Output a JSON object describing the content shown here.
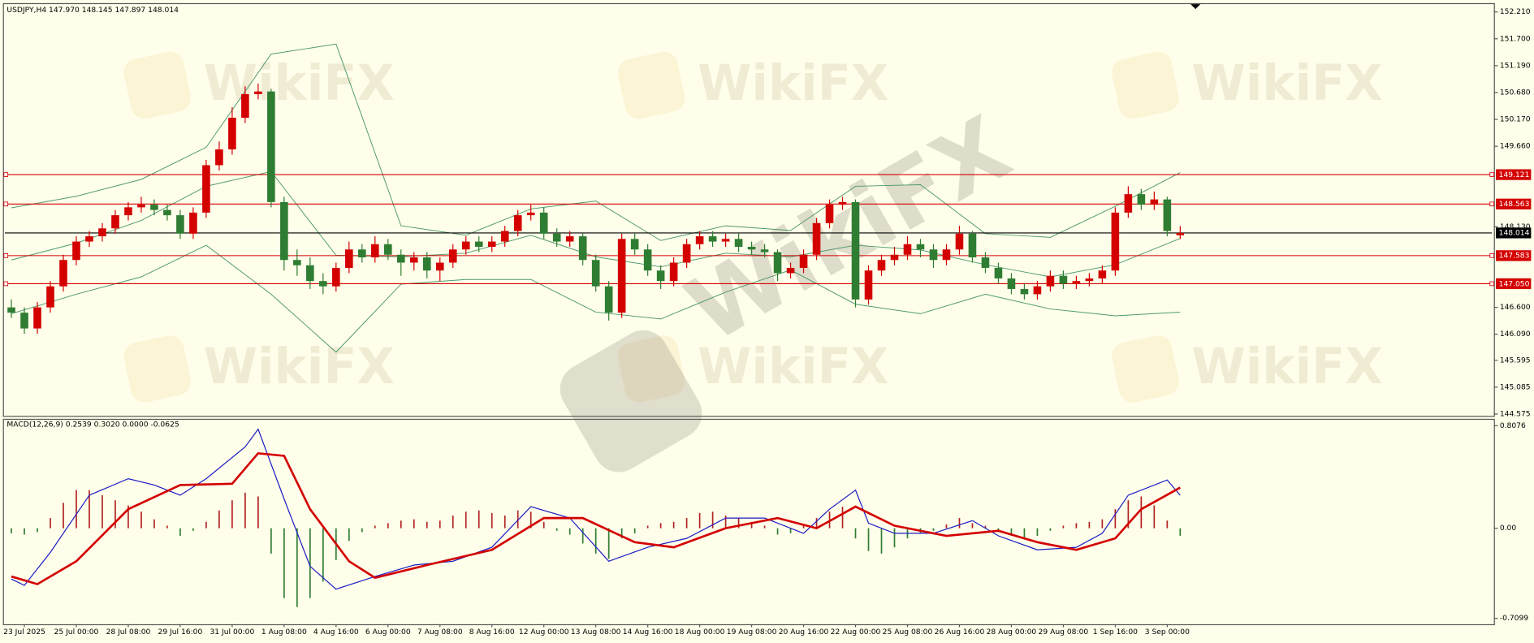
{
  "chart_data": {
    "type": "candlestick",
    "title": "USDJPY,H4  147.970 148.145 147.897 148.014",
    "watermark": "WikiFX",
    "bull_color": "#d40000",
    "bear_color": "#2f7d32",
    "categories": [
      null,
      "23 Jul 2025",
      null,
      null,
      null,
      "25 Jul 00:00",
      null,
      null,
      null,
      "28 Jul 08:00",
      null,
      null,
      null,
      "29 Jul 16:00",
      null,
      null,
      null,
      "31 Jul 00:00",
      null,
      null,
      null,
      "1 Aug 08:00",
      null,
      null,
      null,
      "4 Aug 16:00",
      null,
      null,
      null,
      "6 Aug 00:00",
      null,
      null,
      null,
      "7 Aug 08:00",
      null,
      null,
      null,
      "8 Aug 16:00",
      null,
      null,
      null,
      "12 Aug 00:00",
      null,
      null,
      null,
      "13 Aug 08:00",
      null,
      null,
      null,
      "14 Aug 16:00",
      null,
      null,
      null,
      "18 Aug 00:00",
      null,
      null,
      null,
      "19 Aug 08:00",
      null,
      null,
      null,
      "20 Aug 16:00",
      null,
      null,
      null,
      "22 Aug 00:00",
      null,
      null,
      null,
      "25 Aug 08:00",
      null,
      null,
      null,
      "26 Aug 16:00",
      null,
      null,
      null,
      "28 Aug 00:00",
      null,
      null,
      null,
      "29 Aug 08:00",
      null,
      null,
      null,
      "1 Sep 16:00",
      null,
      null,
      null,
      "3 Sep 00:00",
      null
    ],
    "open": [
      146.6,
      146.5,
      146.2,
      146.6,
      147.0,
      147.5,
      147.85,
      147.95,
      148.1,
      148.35,
      148.5,
      148.55,
      148.45,
      148.35,
      148.0,
      148.4,
      149.3,
      149.6,
      150.2,
      150.65,
      150.7,
      148.6,
      147.5,
      147.4,
      147.1,
      147.0,
      147.35,
      147.7,
      147.55,
      147.8,
      147.6,
      147.45,
      147.55,
      147.3,
      147.45,
      147.7,
      147.85,
      147.75,
      147.85,
      148.05,
      148.35,
      148.4,
      148.0,
      147.85,
      147.95,
      147.5,
      147.0,
      146.5,
      147.9,
      147.7,
      147.3,
      147.1,
      147.45,
      147.8,
      147.95,
      147.85,
      147.9,
      147.75,
      147.7,
      147.65,
      147.25,
      147.35,
      147.6,
      148.2,
      148.55,
      148.6,
      146.75,
      147.3,
      147.5,
      147.6,
      147.8,
      147.7,
      147.5,
      147.7,
      148.0,
      147.55,
      147.35,
      147.15,
      146.95,
      146.85,
      147.0,
      147.2,
      147.05,
      147.1,
      147.15,
      147.3,
      148.4,
      148.75,
      148.55,
      148.65,
      147.97
    ],
    "high": [
      146.75,
      146.6,
      146.7,
      147.1,
      147.6,
      147.95,
      148.05,
      148.2,
      148.45,
      148.6,
      148.7,
      148.65,
      148.55,
      148.45,
      148.5,
      149.4,
      149.75,
      150.4,
      150.8,
      150.85,
      150.75,
      148.7,
      147.7,
      147.55,
      147.25,
      147.45,
      147.85,
      147.8,
      147.95,
      147.9,
      147.7,
      147.65,
      147.65,
      147.55,
      147.8,
      147.95,
      147.95,
      147.95,
      148.15,
      148.45,
      148.55,
      148.5,
      148.1,
      148.05,
      148.0,
      147.6,
      147.1,
      148.0,
      148.0,
      147.8,
      147.4,
      147.55,
      147.9,
      148.05,
      148.05,
      148.0,
      148.0,
      147.85,
      147.8,
      147.7,
      147.45,
      147.7,
      148.3,
      148.65,
      148.7,
      148.65,
      147.4,
      147.6,
      147.75,
      147.95,
      147.9,
      147.8,
      147.8,
      148.15,
      148.05,
      147.65,
      147.45,
      147.25,
      147.05,
      147.1,
      147.3,
      147.3,
      147.2,
      147.25,
      147.4,
      148.5,
      148.9,
      148.85,
      148.8,
      148.7,
      148.145
    ],
    "low": [
      146.4,
      146.1,
      146.1,
      146.5,
      146.9,
      147.4,
      147.75,
      147.85,
      148.0,
      148.25,
      148.4,
      148.35,
      148.25,
      147.9,
      147.9,
      148.3,
      149.2,
      149.5,
      150.1,
      150.55,
      148.5,
      147.3,
      147.2,
      146.95,
      146.85,
      146.9,
      147.25,
      147.45,
      147.45,
      147.5,
      147.2,
      147.3,
      147.15,
      147.1,
      147.35,
      147.6,
      147.65,
      147.65,
      147.75,
      147.95,
      148.25,
      147.9,
      147.75,
      147.75,
      147.4,
      146.9,
      146.35,
      146.4,
      147.6,
      147.2,
      146.95,
      147.0,
      147.35,
      147.7,
      147.75,
      147.75,
      147.65,
      147.6,
      147.55,
      147.1,
      147.15,
      147.25,
      147.5,
      148.1,
      148.45,
      146.6,
      146.65,
      147.2,
      147.4,
      147.5,
      147.55,
      147.35,
      147.4,
      147.6,
      147.45,
      147.25,
      147.05,
      146.85,
      146.75,
      146.75,
      146.9,
      146.95,
      146.95,
      147.0,
      147.05,
      147.2,
      148.3,
      148.45,
      148.45,
      147.95,
      147.897
    ],
    "close": [
      146.5,
      146.2,
      146.6,
      147.0,
      147.5,
      147.85,
      147.95,
      148.1,
      148.35,
      148.5,
      148.55,
      148.45,
      148.35,
      148.0,
      148.4,
      149.3,
      149.6,
      150.2,
      150.65,
      150.7,
      148.6,
      147.5,
      147.4,
      147.1,
      147.0,
      147.35,
      147.7,
      147.55,
      147.8,
      147.6,
      147.45,
      147.55,
      147.3,
      147.45,
      147.7,
      147.85,
      147.75,
      147.85,
      148.05,
      148.35,
      148.4,
      148.0,
      147.85,
      147.95,
      147.5,
      147.0,
      146.5,
      147.9,
      147.7,
      147.3,
      147.1,
      147.45,
      147.8,
      147.95,
      147.85,
      147.9,
      147.75,
      147.7,
      147.65,
      147.25,
      147.35,
      147.6,
      148.2,
      148.55,
      148.6,
      146.75,
      147.3,
      147.5,
      147.6,
      147.8,
      147.7,
      147.5,
      147.7,
      148.0,
      147.55,
      147.35,
      147.15,
      146.95,
      146.85,
      147.0,
      147.2,
      147.05,
      147.1,
      147.15,
      147.3,
      148.4,
      148.75,
      148.55,
      148.65,
      148.05,
      148.014
    ],
    "ylim": [
      144.54,
      152.34
    ],
    "yticks": [
      {
        "value": 152.21,
        "label": "152.210"
      },
      {
        "value": 151.7,
        "label": "151.700"
      },
      {
        "value": 151.19,
        "label": "151.190"
      },
      {
        "value": 150.68,
        "label": "150.680"
      },
      {
        "value": 150.17,
        "label": "150.170"
      },
      {
        "value": 149.66,
        "label": "149.660"
      },
      {
        "value": 148.13,
        "label": "148.130"
      },
      {
        "value": 146.6,
        "label": "146.600"
      },
      {
        "value": 146.09,
        "label": "146.090"
      },
      {
        "value": 145.595,
        "label": "145.595"
      },
      {
        "value": 145.085,
        "label": "145.085"
      },
      {
        "value": 144.575,
        "label": "144.575"
      }
    ],
    "levels": [
      {
        "value": 149.121,
        "label": "149.121",
        "color": "#d40000"
      },
      {
        "value": 148.563,
        "label": "148.563",
        "color": "#d40000"
      },
      {
        "value": 147.583,
        "label": "147.583",
        "color": "#d40000"
      },
      {
        "value": 147.05,
        "label": "147.050",
        "color": "#d40000"
      },
      {
        "value": 148.014,
        "label": "148.014",
        "color": "#000000"
      }
    ],
    "bands": {
      "x": [
        0,
        5,
        10,
        15,
        20,
        25,
        30,
        35,
        40,
        45,
        50,
        55,
        60,
        65,
        70,
        75,
        80,
        85,
        90
      ],
      "series": [
        {
          "color": "#4f9a6e",
          "values": [
            148.49,
            148.71,
            149.03,
            149.64,
            151.41,
            151.6,
            148.15,
            147.97,
            148.47,
            148.62,
            147.87,
            148.15,
            148.06,
            148.9,
            148.93,
            148.0,
            147.93,
            148.52,
            149.16
          ]
        },
        {
          "color": "#4f9a6e",
          "values": [
            147.5,
            147.82,
            148.25,
            148.9,
            149.18,
            147.59,
            147.56,
            147.63,
            147.97,
            147.56,
            147.37,
            147.63,
            147.56,
            147.78,
            147.69,
            147.41,
            147.18,
            147.41,
            147.91
          ]
        },
        {
          "color": "#4f9a6e",
          "values": [
            146.48,
            146.85,
            147.18,
            147.78,
            146.85,
            145.75,
            147.04,
            147.13,
            147.13,
            146.51,
            146.38,
            146.89,
            147.31,
            146.66,
            146.48,
            146.85,
            146.57,
            146.44,
            146.51
          ]
        }
      ]
    },
    "macd": {
      "type": "macd",
      "title": "MACD(12,26,9) 0.2539 0.3020 0.0000 -0.0625",
      "ylim": [
        -0.748,
        0.846
      ],
      "yticks": [
        0.8076,
        {
          "value": 0,
          "label": "0.00"
        },
        -0.7099
      ],
      "up_color": "#b22222",
      "down_color": "#2f7d32",
      "histogram": [
        -0.04,
        -0.05,
        -0.03,
        0.08,
        0.2,
        0.3,
        0.3,
        0.26,
        0.22,
        0.18,
        0.13,
        0.07,
        0.02,
        -0.06,
        -0.02,
        0.05,
        0.14,
        0.22,
        0.28,
        0.25,
        -0.2,
        -0.55,
        -0.62,
        -0.55,
        -0.42,
        -0.25,
        -0.1,
        -0.03,
        0.02,
        0.04,
        0.06,
        0.07,
        0.05,
        0.06,
        0.1,
        0.13,
        0.14,
        0.12,
        0.1,
        0.14,
        0.13,
        0.05,
        -0.02,
        -0.05,
        -0.12,
        -0.2,
        -0.24,
        -0.08,
        -0.04,
        0.02,
        0.04,
        0.05,
        0.08,
        0.12,
        0.13,
        0.1,
        0.08,
        0.05,
        0.02,
        -0.05,
        -0.04,
        0.02,
        0.08,
        0.13,
        0.17,
        -0.08,
        -0.18,
        -0.2,
        -0.15,
        -0.08,
        -0.04,
        -0.02,
        0.03,
        0.08,
        0.04,
        0.02,
        -0.03,
        -0.06,
        -0.08,
        -0.06,
        -0.02,
        0.02,
        0.04,
        0.05,
        0.07,
        0.15,
        0.22,
        0.25,
        0.18,
        0.06,
        -0.06
      ],
      "series": [
        {
          "color": "#1c1cc4",
          "width": 1,
          "x": [
            0,
            1,
            3,
            6,
            9,
            11,
            13,
            15,
            18,
            19,
            21,
            23,
            25,
            28,
            31,
            34,
            37,
            40,
            43,
            46,
            49,
            52,
            55,
            58,
            61,
            63,
            65,
            66,
            68,
            71,
            74,
            76,
            79,
            82,
            84,
            86,
            89,
            90
          ],
          "values": [
            -0.4,
            -0.45,
            -0.19,
            0.26,
            0.39,
            0.34,
            0.26,
            0.39,
            0.64,
            0.78,
            0.23,
            -0.3,
            -0.48,
            -0.38,
            -0.29,
            -0.26,
            -0.15,
            0.17,
            0.08,
            -0.26,
            -0.15,
            -0.08,
            0.08,
            0.08,
            -0.04,
            0.15,
            0.3,
            0.04,
            -0.04,
            -0.04,
            0.06,
            -0.06,
            -0.17,
            -0.15,
            -0.04,
            0.26,
            0.38,
            0.26
          ]
        },
        {
          "color": "#d40000",
          "width": 2.2,
          "x": [
            0,
            2,
            5,
            9,
            13,
            17,
            19,
            21,
            23,
            26,
            28,
            32,
            37,
            41,
            44,
            48,
            51,
            55,
            59,
            62,
            65,
            68,
            72,
            76,
            79,
            82,
            85,
            87,
            90
          ],
          "values": [
            -0.38,
            -0.44,
            -0.26,
            0.15,
            0.34,
            0.35,
            0.59,
            0.57,
            0.15,
            -0.26,
            -0.39,
            -0.29,
            -0.17,
            0.08,
            0.08,
            -0.11,
            -0.15,
            0.0,
            0.08,
            0.0,
            0.17,
            0.02,
            -0.06,
            -0.02,
            -0.11,
            -0.17,
            -0.08,
            0.15,
            0.32
          ]
        }
      ]
    }
  }
}
